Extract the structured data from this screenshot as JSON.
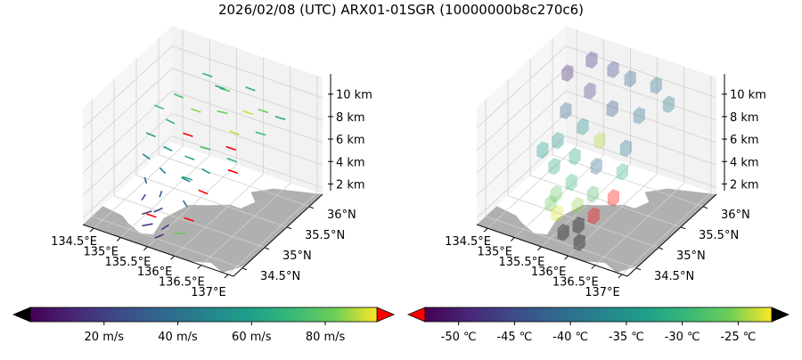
{
  "title": "2026/02/08 (UTC) ARX01-01SGR (10000000b8c270c6)",
  "chart_data": [
    {
      "type": "3d-quiver",
      "xlim": [
        134.3,
        137.1
      ],
      "ylim": [
        34.3,
        36.3
      ],
      "zlim": [
        1.4,
        11.8
      ],
      "x_ticks": [
        "134.5°E",
        "135°E",
        "135.5°E",
        "136°E",
        "136.5°E",
        "137°E"
      ],
      "x_tick_values": [
        134.5,
        135,
        135.5,
        136,
        136.5,
        137
      ],
      "y_ticks": [
        "34.5°N",
        "35°N",
        "35.5°N",
        "36°N"
      ],
      "y_tick_values": [
        34.5,
        35,
        35.5,
        36
      ],
      "z_ticks": [
        "2 km",
        "4 km",
        "6 km",
        "8 km",
        "10 km"
      ],
      "z_tick_values": [
        2,
        4,
        6,
        8,
        10
      ],
      "colorbar": {
        "ticks": [
          "20 m/s",
          "40 m/s",
          "60 m/s",
          "80 m/s"
        ],
        "tick_values": [
          20,
          40,
          60,
          80
        ],
        "range": [
          0,
          94
        ],
        "colormap": "viridis",
        "under_color": "#000000",
        "over_color": "#ff0000"
      },
      "land_color": "#b0b0b0",
      "wind_samples_lon_lat_alt_speed_dir": [
        [
          135.2,
          35.9,
          10.5,
          70,
          90
        ],
        [
          135.6,
          35.8,
          10.2,
          78,
          85
        ],
        [
          136.0,
          35.9,
          10.6,
          66,
          92
        ],
        [
          136.4,
          35.7,
          10.0,
          82,
          88
        ],
        [
          135.0,
          35.5,
          9.8,
          75,
          95
        ],
        [
          135.4,
          35.4,
          9.5,
          85,
          90
        ],
        [
          135.8,
          35.5,
          9.6,
          80,
          80
        ],
        [
          136.2,
          35.3,
          9.2,
          88,
          92
        ],
        [
          136.6,
          35.4,
          9.4,
          72,
          86
        ],
        [
          135.1,
          35.2,
          8.8,
          68,
          100
        ],
        [
          135.5,
          35.1,
          8.6,
          96,
          90
        ],
        [
          135.9,
          35.0,
          8.4,
          74,
          84
        ],
        [
          136.3,
          35.1,
          8.7,
          97,
          88
        ],
        [
          134.9,
          35.0,
          8.0,
          60,
          95
        ],
        [
          135.3,
          34.9,
          7.8,
          58,
          100
        ],
        [
          135.7,
          34.9,
          7.6,
          64,
          92
        ],
        [
          136.1,
          34.8,
          7.5,
          55,
          105
        ],
        [
          136.5,
          34.9,
          7.7,
          98,
          90
        ],
        [
          135.0,
          34.8,
          7.0,
          50,
          110
        ],
        [
          135.4,
          34.7,
          6.8,
          45,
          120
        ],
        [
          135.8,
          34.7,
          6.6,
          48,
          100
        ],
        [
          136.2,
          34.6,
          6.5,
          96,
          95
        ],
        [
          135.2,
          34.6,
          6.0,
          35,
          140
        ],
        [
          135.6,
          34.5,
          5.8,
          30,
          160
        ],
        [
          136.0,
          34.5,
          5.6,
          38,
          130
        ],
        [
          135.3,
          34.5,
          5.0,
          25,
          170
        ],
        [
          135.7,
          34.4,
          4.8,
          22,
          200
        ],
        [
          136.1,
          34.4,
          4.6,
          95,
          90
        ],
        [
          135.5,
          34.4,
          4.2,
          18,
          210
        ],
        [
          135.9,
          34.3,
          4.0,
          20,
          190
        ],
        [
          135.6,
          34.3,
          3.6,
          15,
          220
        ],
        [
          136.0,
          34.3,
          3.4,
          80,
          60
        ],
        [
          135.8,
          34.3,
          3.0,
          12,
          200
        ],
        [
          135.4,
          34.4,
          3.8,
          99,
          90
        ],
        [
          135.9,
          34.6,
          7.2,
          62,
          88
        ],
        [
          136.4,
          35.0,
          8.2,
          70,
          92
        ],
        [
          135.6,
          35.7,
          10.8,
          60,
          90
        ],
        [
          136.8,
          35.6,
          10.4,
          65,
          88
        ],
        [
          134.8,
          35.3,
          9.2,
          72,
          93
        ],
        [
          136.2,
          35.6,
          9.9,
          90,
          90
        ]
      ]
    },
    {
      "type": "3d-voxel",
      "xlim": [
        134.3,
        137.1
      ],
      "ylim": [
        34.3,
        36.3
      ],
      "zlim": [
        1.4,
        11.8
      ],
      "x_ticks": [
        "134.5°E",
        "135°E",
        "135.5°E",
        "136°E",
        "136.5°E",
        "137°E"
      ],
      "x_tick_values": [
        134.5,
        135,
        135.5,
        136,
        136.5,
        137
      ],
      "y_ticks": [
        "34.5°N",
        "35°N",
        "35.5°N",
        "36°N"
      ],
      "y_tick_values": [
        34.5,
        35,
        35.5,
        36
      ],
      "z_ticks": [
        "2 km",
        "4 km",
        "6 km",
        "8 km",
        "10 km"
      ],
      "z_tick_values": [
        2,
        4,
        6,
        8,
        10
      ],
      "colorbar": {
        "ticks": [
          "-50 ℃",
          "-45 ℃",
          "-40 ℃",
          "-35 ℃",
          "-30 ℃",
          "-25 ℃"
        ],
        "tick_values": [
          -50,
          -45,
          -40,
          -35,
          -30,
          -25
        ],
        "range": [
          -53,
          -22
        ],
        "colormap": "viridis",
        "under_color": "#ff0000",
        "over_color": "#000000"
      },
      "land_color": "#b0b0b0",
      "voxels_lon_lat_alt_temp": [
        [
          135.0,
          35.9,
          10.8,
          -48
        ],
        [
          135.4,
          35.9,
          10.6,
          -45
        ],
        [
          135.8,
          35.8,
          10.8,
          -42
        ],
        [
          136.2,
          35.9,
          10.5,
          -40
        ],
        [
          136.6,
          35.7,
          10.2,
          -38
        ],
        [
          134.8,
          35.6,
          10.4,
          -50
        ],
        [
          135.3,
          35.5,
          10.0,
          -46
        ],
        [
          135.8,
          35.4,
          9.6,
          -44
        ],
        [
          136.3,
          35.4,
          9.8,
          -40
        ],
        [
          135.1,
          35.2,
          9.0,
          -42
        ],
        [
          135.5,
          35.1,
          8.6,
          -36
        ],
        [
          135.9,
          35.0,
          8.4,
          -24
        ],
        [
          136.3,
          35.1,
          8.0,
          -38
        ],
        [
          135.2,
          34.9,
          7.6,
          -35
        ],
        [
          135.6,
          34.8,
          7.2,
          -33
        ],
        [
          136.0,
          34.8,
          7.0,
          -40
        ],
        [
          136.4,
          34.9,
          6.8,
          -30
        ],
        [
          135.3,
          34.7,
          6.2,
          -32
        ],
        [
          135.7,
          34.6,
          5.8,
          -30
        ],
        [
          136.1,
          34.6,
          5.4,
          -28
        ],
        [
          135.5,
          34.5,
          4.8,
          -27
        ],
        [
          135.9,
          34.5,
          4.4,
          -25
        ],
        [
          136.2,
          34.5,
          4.0,
          -55
        ],
        [
          135.6,
          34.4,
          3.6,
          -23
        ],
        [
          136.0,
          34.4,
          3.2,
          -20
        ],
        [
          135.8,
          34.3,
          2.6,
          -18
        ],
        [
          136.1,
          34.3,
          2.2,
          -19
        ],
        [
          135.4,
          34.5,
          3.8,
          -26
        ],
        [
          136.4,
          34.7,
          5.2,
          -56
        ],
        [
          135.0,
          34.8,
          6.8,
          -34
        ]
      ]
    }
  ]
}
